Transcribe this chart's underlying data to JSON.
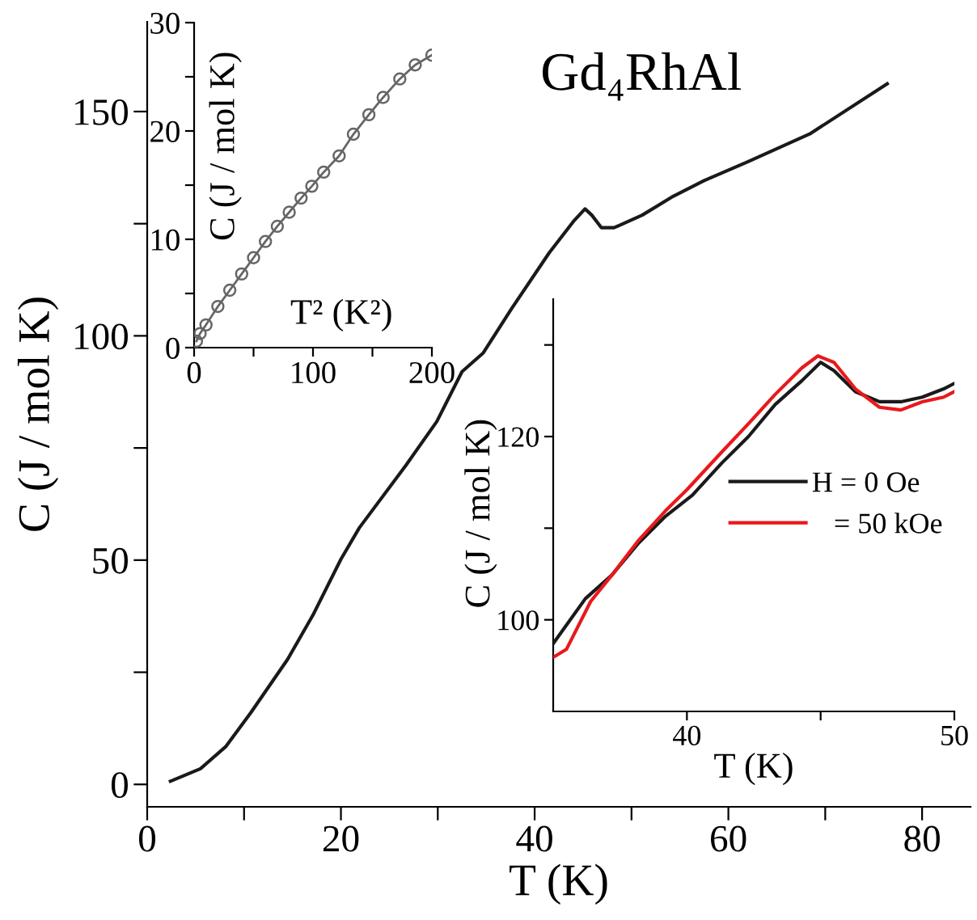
{
  "chart_data": [
    {
      "type": "line",
      "title": "Gd₄RhAl",
      "xlabel": "T (K)",
      "ylabel": "C (J / mol K)",
      "xlim": [
        0,
        85
      ],
      "ylim": [
        -5,
        170
      ],
      "xticks": [
        0,
        {
          "value": 10,
          "label": null
        },
        20,
        {
          "value": 30,
          "label": null
        },
        40,
        {
          "value": 50,
          "label": null
        },
        60,
        {
          "value": 70,
          "label": null
        },
        80
      ],
      "yticks": [
        0,
        {
          "value": 25,
          "label": null
        },
        50,
        {
          "value": 75,
          "label": null
        },
        100,
        {
          "value": 125,
          "label": null
        },
        150
      ],
      "grid": false,
      "legend": false,
      "marker": "none",
      "line_style": "solid",
      "x": [
        2.4,
        5.5,
        8.1,
        10.7,
        14.5,
        17.1,
        20,
        21.9,
        26.7,
        29.9,
        32.5,
        34.7,
        37.6,
        41.5,
        44,
        45.2,
        45.9,
        46.9,
        48.2,
        51.1,
        54.3,
        57.5,
        62,
        68.4,
        76.4
      ],
      "series": [
        {
          "color": "#1a1a1a",
          "values": [
            0.7,
            3.5,
            8.4,
            16,
            27.9,
            37.7,
            50.2,
            57.2,
            71.1,
            80.9,
            92,
            96.2,
            106,
            118.5,
            125.5,
            128.3,
            126.9,
            124.1,
            124.1,
            126.9,
            131.1,
            134.6,
            138.8,
            145,
            156.2
          ]
        }
      ]
    },
    {
      "type": "line",
      "xlabel": "T² (K²)",
      "ylabel": "C (J / mol K)",
      "xlim": [
        0,
        200
      ],
      "ylim": [
        0,
        30
      ],
      "xticks": [
        0,
        {
          "value": 50,
          "label": null
        },
        100,
        {
          "value": 150,
          "label": null
        },
        200
      ],
      "yticks": [
        0,
        {
          "value": 5,
          "label": null
        },
        10,
        {
          "value": 15,
          "label": null
        },
        20,
        {
          "value": 25,
          "label": null
        },
        30
      ],
      "grid": false,
      "legend": false,
      "marker": "circle",
      "line_style": "solid",
      "x": [
        2,
        5,
        10,
        20,
        30,
        40,
        50,
        60,
        70,
        80,
        90,
        99,
        109,
        122,
        134,
        147,
        159,
        173,
        186,
        200
      ],
      "series": [
        {
          "color": "#666666",
          "values": [
            0.6,
            1.3,
            2.1,
            3.8,
            5.3,
            6.8,
            8.3,
            9.8,
            11.2,
            12.5,
            13.8,
            14.9,
            16.2,
            17.7,
            19.7,
            21.5,
            23.1,
            24.8,
            26.1,
            27.0
          ]
        }
      ]
    },
    {
      "type": "line",
      "xlabel": "T (K)",
      "ylabel": "C (J / mol K)",
      "xlim": [
        35,
        50
      ],
      "ylim": [
        90,
        135
      ],
      "xticks": [
        40,
        {
          "value": 45,
          "label": null
        },
        50
      ],
      "yticks": [
        100,
        {
          "value": 110,
          "label": null
        },
        120,
        {
          "value": 130,
          "label": null
        }
      ],
      "grid": false,
      "legend": "center right",
      "marker": "none",
      "line_style": "solid",
      "series": [
        {
          "name": "H = 0 Oe",
          "color": "#1a1a1a",
          "x": [
            35,
            36.2,
            37.2,
            38.2,
            39.2,
            40.2,
            41.3,
            42.3,
            43.3,
            44.3,
            45,
            45.5,
            46.3,
            47.2,
            48,
            48.8,
            49.6,
            50
          ],
          "values": [
            97.4,
            102.3,
            104.9,
            108.4,
            111.3,
            113.6,
            117.1,
            120,
            123.5,
            126.1,
            128.1,
            127.2,
            124.9,
            123.8,
            123.8,
            124.3,
            125.2,
            125.8
          ]
        },
        {
          "name": "   = 50 kOe",
          "color": "#e8191c",
          "x": [
            35,
            35.5,
            36.4,
            37.2,
            38.2,
            39.2,
            40,
            41.3,
            42.3,
            43.3,
            44.3,
            44.9,
            45.5,
            46.3,
            47.2,
            48,
            48.8,
            49.6,
            50
          ],
          "values": [
            95.9,
            96.8,
            102,
            104.9,
            108.7,
            111.9,
            114.2,
            118.3,
            121.4,
            124.6,
            127.5,
            128.8,
            128.1,
            125.2,
            123.2,
            122.9,
            123.8,
            124.3,
            124.9
          ]
        }
      ]
    }
  ]
}
